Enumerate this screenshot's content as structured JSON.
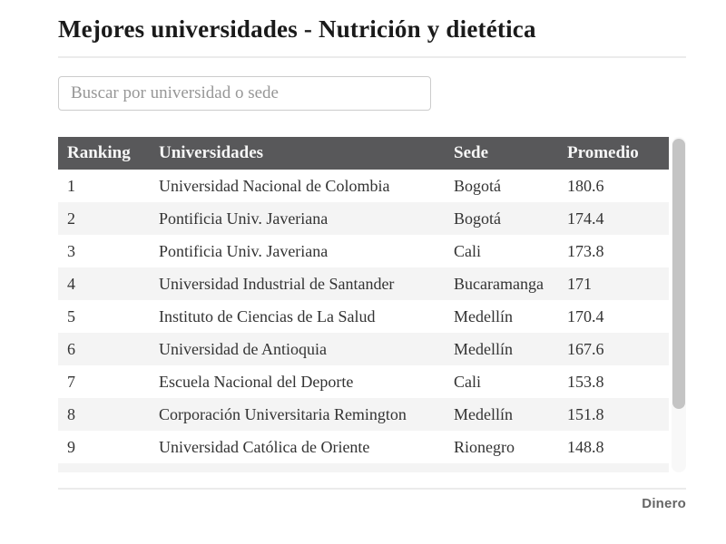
{
  "page": {
    "title": "Mejores universidades - Nutrición y dietética",
    "brand": "Dinero"
  },
  "search": {
    "placeholder": "Buscar por universidad o sede",
    "value": ""
  },
  "table": {
    "columns": [
      "Ranking",
      "Universidades",
      "Sede",
      "Promedio"
    ],
    "rows": [
      {
        "ranking": "1",
        "universidad": "Universidad Nacional de Colombia",
        "sede": "Bogotá",
        "promedio": "180.6"
      },
      {
        "ranking": "2",
        "universidad": "Pontificia Univ. Javeriana",
        "sede": "Bogotá",
        "promedio": "174.4"
      },
      {
        "ranking": "3",
        "universidad": "Pontificia Univ. Javeriana",
        "sede": "Cali",
        "promedio": "173.8"
      },
      {
        "ranking": "4",
        "universidad": "Universidad Industrial de Santander",
        "sede": "Bucaramanga",
        "promedio": "171"
      },
      {
        "ranking": "5",
        "universidad": "Instituto de Ciencias de La Salud",
        "sede": "Medellín",
        "promedio": "170.4"
      },
      {
        "ranking": "6",
        "universidad": "Universidad de Antioquia",
        "sede": "Medellín",
        "promedio": "167.6"
      },
      {
        "ranking": "7",
        "universidad": "Escuela Nacional del Deporte",
        "sede": "Cali",
        "promedio": "153.8"
      },
      {
        "ranking": "8",
        "universidad": "Corporación Universitaria Remington",
        "sede": "Medellín",
        "promedio": "151.8"
      },
      {
        "ranking": "9",
        "universidad": "Universidad Católica de Oriente",
        "sede": "Rionegro",
        "promedio": "148.8"
      }
    ]
  },
  "colors": {
    "header_background": "#58585a",
    "header_text": "#f7f7f7",
    "stripe_row": "#f4f4f4",
    "title_text": "#1a1a1a",
    "brand_text": "#666666"
  }
}
